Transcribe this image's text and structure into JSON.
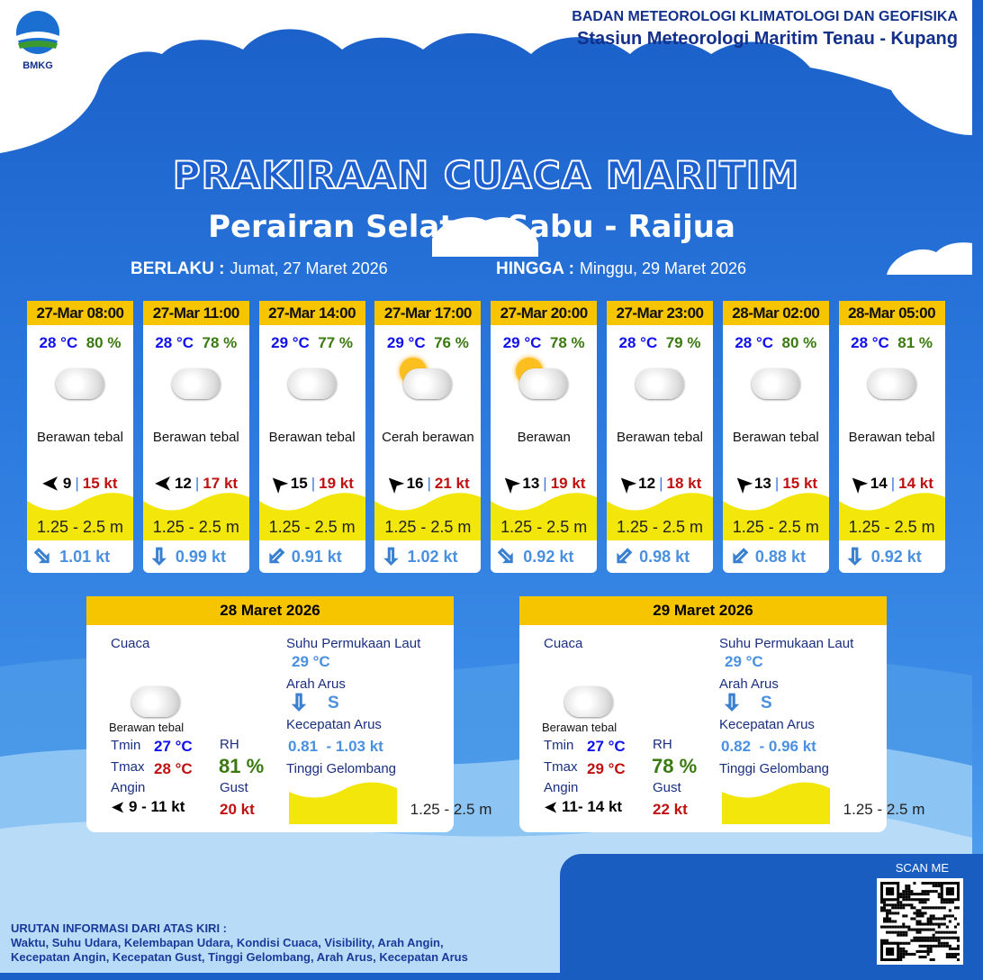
{
  "header": {
    "logo_text": "BMKG",
    "agency": "BADAN METEOROLOGI KLIMATOLOGI DAN GEOFISIKA",
    "station": "Stasiun Meteorologi Maritim Tenau - Kupang"
  },
  "title": "PRAKIRAAN CUACA MARITIM",
  "subtitle": "Perairan Selatan Sabu - Raijua",
  "validity": {
    "from_label": "BERLAKU :",
    "from": "Jumat, 27 Maret 2026",
    "to_label": "HINGGA :",
    "to": "Minggu, 29 Maret 2026"
  },
  "forecasts": [
    {
      "time": "27-Mar 08:00",
      "temp": "28 °C",
      "rh": "80 %",
      "icon": "cloudy-icon",
      "cond": "Berawan tebal",
      "wind": "9",
      "gust": "15 kt",
      "wind_dir": "W",
      "wave": "1.25 - 2.5 m",
      "cur_dir": "SE",
      "cur": "1.01 kt"
    },
    {
      "time": "27-Mar 11:00",
      "temp": "28 °C",
      "rh": "78 %",
      "icon": "cloudy-icon",
      "cond": "Berawan tebal",
      "wind": "12",
      "gust": "17 kt",
      "wind_dir": "W",
      "wave": "1.25 - 2.5 m",
      "cur_dir": "S",
      "cur": "0.99 kt"
    },
    {
      "time": "27-Mar 14:00",
      "temp": "29 °C",
      "rh": "77 %",
      "icon": "cloudy-icon",
      "cond": "Berawan tebal",
      "wind": "15",
      "gust": "19 kt",
      "wind_dir": "NW",
      "wave": "1.25 - 2.5 m",
      "cur_dir": "SW",
      "cur": "0.91 kt"
    },
    {
      "time": "27-Mar 17:00",
      "temp": "29 °C",
      "rh": "76 %",
      "icon": "partly-cloudy-icon",
      "cond": "Cerah berawan",
      "wind": "16",
      "gust": "21 kt",
      "wind_dir": "NW",
      "wave": "1.25 - 2.5 m",
      "cur_dir": "S",
      "cur": "1.02 kt"
    },
    {
      "time": "27-Mar 20:00",
      "temp": "29 °C",
      "rh": "78 %",
      "icon": "partly-cloudy-icon",
      "cond": "Berawan",
      "wind": "13",
      "gust": "19 kt",
      "wind_dir": "NW",
      "wave": "1.25 - 2.5 m",
      "cur_dir": "SE",
      "cur": "0.92 kt"
    },
    {
      "time": "27-Mar 23:00",
      "temp": "28 °C",
      "rh": "79 %",
      "icon": "cloudy-icon",
      "cond": "Berawan tebal",
      "wind": "12",
      "gust": "18 kt",
      "wind_dir": "NW",
      "wave": "1.25 - 2.5 m",
      "cur_dir": "SW",
      "cur": "0.98 kt"
    },
    {
      "time": "28-Mar 02:00",
      "temp": "28 °C",
      "rh": "80 %",
      "icon": "cloudy-icon",
      "cond": "Berawan tebal",
      "wind": "13",
      "gust": "15 kt",
      "wind_dir": "NW",
      "wave": "1.25 - 2.5 m",
      "cur_dir": "SW",
      "cur": "0.88 kt"
    },
    {
      "time": "28-Mar 05:00",
      "temp": "28 °C",
      "rh": "81 %",
      "icon": "cloudy-icon",
      "cond": "Berawan tebal",
      "wind": "14",
      "gust": "14 kt",
      "wind_dir": "NW",
      "wave": "1.25 - 2.5 m",
      "cur_dir": "S",
      "cur": "0.92 kt"
    }
  ],
  "daily_labels": {
    "weather": "Cuaca",
    "sst": "Suhu Permukaan Laut",
    "cur_dir": "Arah Arus",
    "cur_speed": "Kecepatan Arus",
    "wave": "Tinggi Gelombang",
    "tmin": "Tmin",
    "tmax": "Tmax",
    "rh": "RH",
    "wind": "Angin",
    "gust": "Gust"
  },
  "daily": [
    {
      "date": "28 Maret 2026",
      "cond": "Berawan tebal",
      "tmin": "27 °C",
      "tmax": "28 °C",
      "rh": "81 %",
      "wind": "9  - 11 kt",
      "gust": "20 kt",
      "sst": "29 °C",
      "cur_dir": "S",
      "cur_speed": "0.81  - 1.03 kt",
      "wave": "1.25 - 2.5 m"
    },
    {
      "date": "29 Maret 2026",
      "cond": "Berawan tebal",
      "tmin": "27 °C",
      "tmax": "29 °C",
      "rh": "78 %",
      "wind": "11- 14 kt",
      "gust": "22 kt",
      "sst": "29 °C",
      "cur_dir": "S",
      "cur_speed": "0.82  - 0.96 kt",
      "wave": "1.25 - 2.5 m"
    }
  ],
  "qr": {
    "label": "SCAN ME"
  },
  "legend": {
    "line1": "URUTAN INFORMASI DARI ATAS KIRI :",
    "line2": "Waktu, Suhu Udara, Kelembapan Udara, Kondisi Cuaca, Visibility, Arah Angin,",
    "line3": "Kecepatan Angin, Kecepatan Gust, Tinggi Gelombang, Arah Arus, Kecepatan Arus"
  },
  "colors": {
    "header_yellow": "#f7c400",
    "wave_yellow": "#f2e60a",
    "temp": "#1010ee",
    "rh": "#3a7a10",
    "gust": "#c01010",
    "current": "#4a90e0"
  }
}
